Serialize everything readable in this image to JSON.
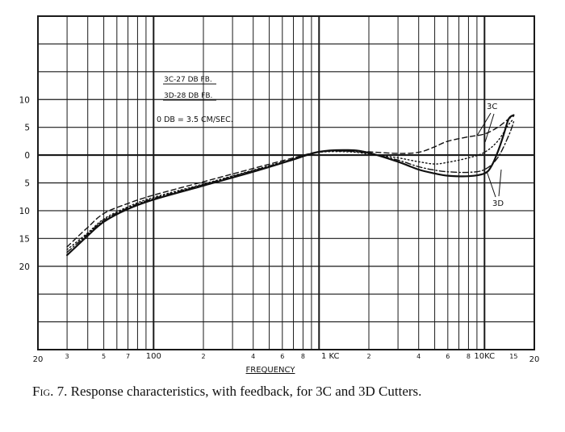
{
  "chart_data": {
    "type": "line",
    "x_scale": "log",
    "xlim": [
      20,
      20000
    ],
    "ylim": [
      -35,
      25
    ],
    "grid": true,
    "xlabel": "FREQUENCY",
    "x_tick_labels": [
      {
        "x": 20,
        "label": "20"
      },
      {
        "x": 30,
        "label": "3"
      },
      {
        "x": 50,
        "label": "5"
      },
      {
        "x": 70,
        "label": "7"
      },
      {
        "x": 100,
        "label": "100"
      },
      {
        "x": 200,
        "label": "2"
      },
      {
        "x": 400,
        "label": "4"
      },
      {
        "x": 600,
        "label": "6"
      },
      {
        "x": 800,
        "label": "8"
      },
      {
        "x": 1000,
        "label": "1 KC"
      },
      {
        "x": 2000,
        "label": "2"
      },
      {
        "x": 4000,
        "label": "4"
      },
      {
        "x": 6000,
        "label": "6"
      },
      {
        "x": 8000,
        "label": "8"
      },
      {
        "x": 10000,
        "label": "10KC"
      },
      {
        "x": 15000,
        "label": "15"
      },
      {
        "x": 20000,
        "label": "20"
      }
    ],
    "y_tick_labels": [
      {
        "y": 10,
        "label": "10"
      },
      {
        "y": 5,
        "label": "5"
      },
      {
        "y": 0,
        "label": "0"
      },
      {
        "y": -5,
        "label": "5"
      },
      {
        "y": -10,
        "label": "10"
      },
      {
        "y": -15,
        "label": "15"
      },
      {
        "y": -20,
        "label": "20"
      }
    ],
    "legend_lines": [
      "3C-27 DB FB.",
      "3D-28 DB FB."
    ],
    "reference_note": "0 DB = 3.5 CM/SEC.",
    "series": [
      {
        "name": "3C",
        "style": "dashed",
        "x": [
          30,
          40,
          50,
          70,
          100,
          200,
          400,
          700,
          1000,
          1500,
          2000,
          3000,
          4000,
          5000,
          6000,
          8000,
          10000,
          12000,
          14000,
          15000
        ],
        "y": [
          -16.5,
          -13,
          -10.5,
          -8.7,
          -7.2,
          -4.8,
          -2.4,
          -0.5,
          0.6,
          0.8,
          0.6,
          0.3,
          0.5,
          1.5,
          2.5,
          3.3,
          3.8,
          5,
          6.5,
          7
        ]
      },
      {
        "name": "3C",
        "style": "dotted",
        "x": [
          30,
          40,
          50,
          70,
          100,
          200,
          400,
          700,
          1000,
          1500,
          2000,
          3000,
          4000,
          5000,
          6000,
          8000,
          10000,
          12000,
          14000,
          15000
        ],
        "y": [
          -17,
          -14,
          -11.5,
          -9.3,
          -7.6,
          -5.2,
          -2.7,
          -0.7,
          0.5,
          0.6,
          0.2,
          -0.5,
          -1.2,
          -1.6,
          -1.3,
          -0.5,
          0.5,
          2.5,
          5.5,
          6.5
        ]
      },
      {
        "name": "3D",
        "style": "solid",
        "x": [
          30,
          40,
          50,
          70,
          100,
          200,
          400,
          700,
          1000,
          1500,
          2000,
          3000,
          4000,
          5000,
          6000,
          8000,
          10000,
          11000,
          12000,
          13000,
          14000,
          15000
        ],
        "y": [
          -18,
          -14.5,
          -12,
          -9.7,
          -8,
          -5.5,
          -3,
          -0.8,
          0.6,
          0.9,
          0.4,
          -1.2,
          -2.6,
          -3.3,
          -3.7,
          -3.8,
          -3.3,
          -2,
          0.5,
          3.5,
          6.5,
          7.2
        ]
      },
      {
        "name": "3D",
        "style": "dash-dot",
        "x": [
          30,
          40,
          50,
          70,
          100,
          200,
          400,
          700,
          1000,
          1500,
          2000,
          3000,
          4000,
          5000,
          6000,
          8000,
          10000,
          12000,
          14000,
          15000
        ],
        "y": [
          -17.5,
          -14.2,
          -11.7,
          -9.5,
          -7.8,
          -5.3,
          -2.8,
          -0.7,
          0.55,
          0.7,
          0.3,
          -0.9,
          -2.1,
          -2.7,
          -3,
          -3.1,
          -2.6,
          -0.5,
          3.5,
          6
        ]
      }
    ],
    "series_labels": [
      "3C",
      "3D"
    ]
  },
  "caption": {
    "fig_label": "Fig.",
    "text": " 7. Response characteristics, with feedback, for 3C and 3D Cutters."
  },
  "colors": {
    "ink": "#111111",
    "grid": "#1a1a1a",
    "paper": "#ffffff"
  }
}
